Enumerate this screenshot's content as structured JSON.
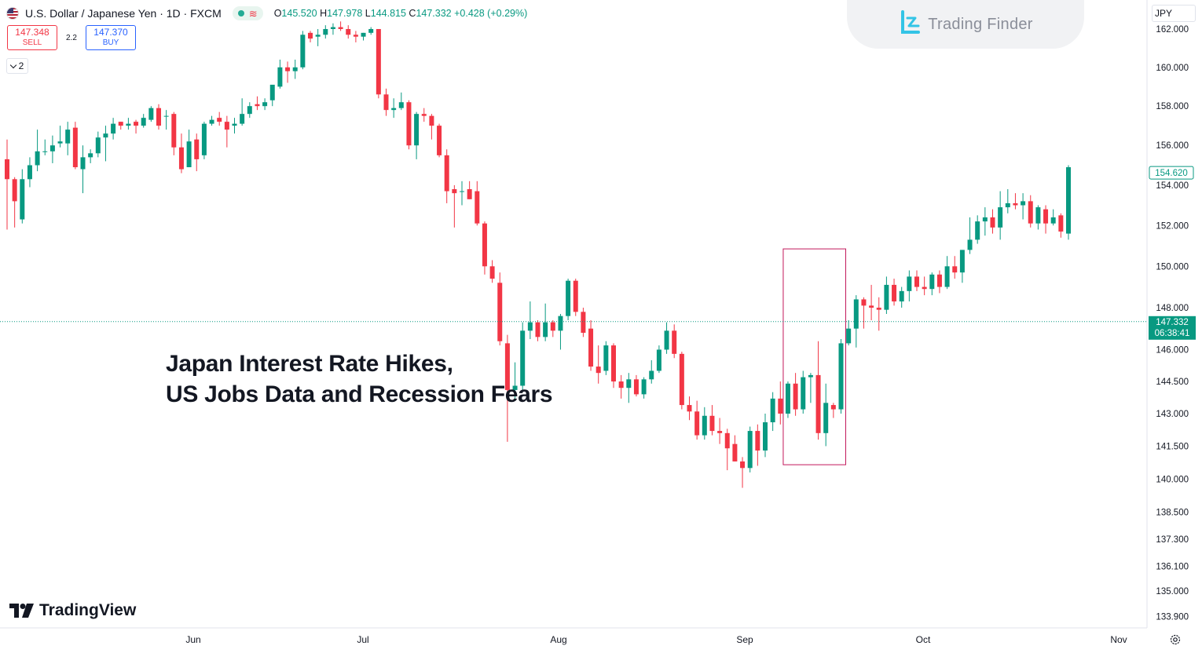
{
  "header": {
    "title": "U.S. Dollar / Japanese Yen · 1D · FXCM",
    "ohlc": {
      "o_label": "O",
      "o": "145.520",
      "h_label": "H",
      "h": "147.978",
      "l_label": "L",
      "l": "144.815",
      "c_label": "C",
      "c": "147.332",
      "change": "+0.428 (+0.29%)"
    }
  },
  "trade": {
    "sell_price": "147.348",
    "sell_label": "SELL",
    "spread": "2.2",
    "buy_price": "147.370",
    "buy_label": "BUY"
  },
  "indicator_count": "2",
  "currency": "JPY",
  "watermark": "Trading Finder",
  "brand": "TradingView",
  "annotation": {
    "line1": "Japan Interest Rate Hikes,",
    "line2": "US Jobs Data and Recession Fears"
  },
  "colors": {
    "up": "#089981",
    "down": "#f23645",
    "box": "#c2185b",
    "last_price": "#089981"
  },
  "chart_data": {
    "type": "candlestick",
    "symbol": "USDJPY",
    "y_ticks": [
      "162.000",
      "160.000",
      "158.000",
      "156.000",
      "154.000",
      "152.000",
      "150.000",
      "148.000",
      "146.000",
      "144.500",
      "143.000",
      "141.500",
      "140.000",
      "138.500",
      "137.300",
      "136.100",
      "135.000",
      "133.900"
    ],
    "x_ticks": [
      "Jun",
      "Jul",
      "Aug",
      "Sep",
      "Oct",
      "Nov"
    ],
    "y_scale": "log",
    "y_range": [
      133.4,
      163.2
    ],
    "last_price": {
      "value": "147.332",
      "countdown": "06:38:41"
    },
    "hline_label": {
      "value": "154.620"
    },
    "highlight_box": {
      "from_index": 103,
      "to_index": 110,
      "high": 150.85,
      "low": 140.65
    },
    "candles": [
      {
        "o": 155.3,
        "h": 156.3,
        "l": 151.8,
        "c": 154.3
      },
      {
        "o": 154.3,
        "h": 154.4,
        "l": 151.9,
        "c": 153.2
      },
      {
        "o": 152.3,
        "h": 154.8,
        "l": 152.1,
        "c": 154.3
      },
      {
        "o": 154.3,
        "h": 155.4,
        "l": 153.9,
        "c": 155.0
      },
      {
        "o": 155.0,
        "h": 156.8,
        "l": 154.7,
        "c": 155.7
      },
      {
        "o": 155.7,
        "h": 156.3,
        "l": 155.5,
        "c": 155.7
      },
      {
        "o": 155.7,
        "h": 156.5,
        "l": 155.1,
        "c": 156.0
      },
      {
        "o": 156.1,
        "h": 157.0,
        "l": 155.9,
        "c": 156.2
      },
      {
        "o": 156.1,
        "h": 157.2,
        "l": 155.5,
        "c": 156.8
      },
      {
        "o": 156.9,
        "h": 157.2,
        "l": 154.8,
        "c": 154.9
      },
      {
        "o": 154.8,
        "h": 156.0,
        "l": 153.6,
        "c": 155.4
      },
      {
        "o": 155.4,
        "h": 155.8,
        "l": 155.1,
        "c": 155.6
      },
      {
        "o": 155.6,
        "h": 156.7,
        "l": 155.4,
        "c": 156.4
      },
      {
        "o": 156.4,
        "h": 157.0,
        "l": 155.2,
        "c": 156.6
      },
      {
        "o": 156.6,
        "h": 157.4,
        "l": 156.3,
        "c": 157.1
      },
      {
        "o": 157.2,
        "h": 157.2,
        "l": 156.8,
        "c": 157.0
      },
      {
        "o": 157.0,
        "h": 157.4,
        "l": 156.8,
        "c": 157.1
      },
      {
        "o": 157.2,
        "h": 157.3,
        "l": 156.6,
        "c": 157.0
      },
      {
        "o": 157.0,
        "h": 157.6,
        "l": 156.9,
        "c": 157.4
      },
      {
        "o": 157.3,
        "h": 158.0,
        "l": 157.2,
        "c": 157.9
      },
      {
        "o": 157.9,
        "h": 158.1,
        "l": 156.8,
        "c": 157.0
      },
      {
        "o": 157.5,
        "h": 157.8,
        "l": 156.8,
        "c": 157.5
      },
      {
        "o": 157.6,
        "h": 157.7,
        "l": 155.5,
        "c": 155.9
      },
      {
        "o": 155.9,
        "h": 156.6,
        "l": 154.6,
        "c": 154.8
      },
      {
        "o": 154.9,
        "h": 156.8,
        "l": 154.9,
        "c": 156.2
      },
      {
        "o": 156.3,
        "h": 156.6,
        "l": 154.7,
        "c": 155.3
      },
      {
        "o": 155.5,
        "h": 157.2,
        "l": 155.3,
        "c": 157.1
      },
      {
        "o": 157.1,
        "h": 157.5,
        "l": 157.0,
        "c": 157.3
      },
      {
        "o": 157.4,
        "h": 157.7,
        "l": 157.0,
        "c": 157.2
      },
      {
        "o": 157.2,
        "h": 157.5,
        "l": 155.9,
        "c": 156.8
      },
      {
        "o": 157.0,
        "h": 157.4,
        "l": 156.6,
        "c": 157.1
      },
      {
        "o": 157.1,
        "h": 158.4,
        "l": 157.0,
        "c": 157.6
      },
      {
        "o": 157.6,
        "h": 158.2,
        "l": 157.4,
        "c": 158.0
      },
      {
        "o": 158.1,
        "h": 158.5,
        "l": 157.8,
        "c": 158.0
      },
      {
        "o": 158.0,
        "h": 158.4,
        "l": 157.8,
        "c": 158.2
      },
      {
        "o": 158.3,
        "h": 159.0,
        "l": 158.0,
        "c": 159.1
      },
      {
        "o": 159.0,
        "h": 160.4,
        "l": 158.9,
        "c": 160.0
      },
      {
        "o": 160.0,
        "h": 160.3,
        "l": 159.2,
        "c": 159.8
      },
      {
        "o": 159.8,
        "h": 160.4,
        "l": 159.4,
        "c": 160.0
      },
      {
        "o": 160.0,
        "h": 161.9,
        "l": 159.9,
        "c": 161.7
      },
      {
        "o": 161.8,
        "h": 161.9,
        "l": 161.3,
        "c": 161.5
      },
      {
        "o": 161.6,
        "h": 162.0,
        "l": 161.1,
        "c": 161.7
      },
      {
        "o": 161.7,
        "h": 162.2,
        "l": 161.5,
        "c": 162.0
      },
      {
        "o": 162.0,
        "h": 162.3,
        "l": 161.7,
        "c": 162.1
      },
      {
        "o": 162.1,
        "h": 162.4,
        "l": 161.9,
        "c": 162.0
      },
      {
        "o": 162.0,
        "h": 162.2,
        "l": 161.5,
        "c": 161.7
      },
      {
        "o": 161.7,
        "h": 161.9,
        "l": 161.3,
        "c": 161.6
      },
      {
        "o": 161.6,
        "h": 161.8,
        "l": 161.4,
        "c": 161.8
      },
      {
        "o": 161.8,
        "h": 162.1,
        "l": 161.7,
        "c": 162.0
      },
      {
        "o": 162.0,
        "h": 162.0,
        "l": 158.4,
        "c": 158.6
      },
      {
        "o": 158.6,
        "h": 158.9,
        "l": 157.5,
        "c": 157.8
      },
      {
        "o": 157.8,
        "h": 158.4,
        "l": 157.4,
        "c": 157.9
      },
      {
        "o": 157.9,
        "h": 158.7,
        "l": 157.8,
        "c": 158.2
      },
      {
        "o": 158.2,
        "h": 158.3,
        "l": 155.8,
        "c": 156.0
      },
      {
        "o": 156.0,
        "h": 157.7,
        "l": 155.3,
        "c": 157.6
      },
      {
        "o": 157.6,
        "h": 157.9,
        "l": 157.2,
        "c": 157.5
      },
      {
        "o": 157.5,
        "h": 157.6,
        "l": 156.3,
        "c": 157.0
      },
      {
        "o": 157.0,
        "h": 157.1,
        "l": 155.4,
        "c": 155.5
      },
      {
        "o": 155.5,
        "h": 155.8,
        "l": 153.1,
        "c": 153.7
      },
      {
        "o": 153.8,
        "h": 154.0,
        "l": 151.9,
        "c": 153.6
      },
      {
        "o": 153.7,
        "h": 154.2,
        "l": 153.0,
        "c": 153.7
      },
      {
        "o": 153.8,
        "h": 154.2,
        "l": 153.3,
        "c": 153.3
      },
      {
        "o": 153.7,
        "h": 154.2,
        "l": 152.0,
        "c": 152.1
      },
      {
        "o": 152.1,
        "h": 152.2,
        "l": 149.6,
        "c": 150.0
      },
      {
        "o": 150.0,
        "h": 150.3,
        "l": 149.2,
        "c": 149.4
      },
      {
        "o": 149.2,
        "h": 149.7,
        "l": 146.2,
        "c": 146.4
      },
      {
        "o": 146.3,
        "h": 146.7,
        "l": 141.7,
        "c": 144.1
      },
      {
        "o": 144.1,
        "h": 145.4,
        "l": 143.7,
        "c": 144.3
      },
      {
        "o": 144.3,
        "h": 147.3,
        "l": 144.0,
        "c": 146.9
      },
      {
        "o": 146.9,
        "h": 148.3,
        "l": 146.5,
        "c": 147.3
      },
      {
        "o": 147.3,
        "h": 147.4,
        "l": 146.4,
        "c": 146.6
      },
      {
        "o": 146.6,
        "h": 148.2,
        "l": 146.4,
        "c": 147.3
      },
      {
        "o": 147.3,
        "h": 147.4,
        "l": 146.6,
        "c": 146.9
      },
      {
        "o": 146.9,
        "h": 147.7,
        "l": 146.0,
        "c": 147.6
      },
      {
        "o": 147.6,
        "h": 149.4,
        "l": 147.4,
        "c": 149.3
      },
      {
        "o": 149.3,
        "h": 149.4,
        "l": 147.6,
        "c": 147.8
      },
      {
        "o": 147.8,
        "h": 148.0,
        "l": 146.6,
        "c": 146.8
      },
      {
        "o": 147.0,
        "h": 147.4,
        "l": 145.0,
        "c": 145.2
      },
      {
        "o": 145.2,
        "h": 146.2,
        "l": 144.4,
        "c": 144.9
      },
      {
        "o": 145.0,
        "h": 146.4,
        "l": 144.8,
        "c": 146.2
      },
      {
        "o": 146.2,
        "h": 146.3,
        "l": 144.2,
        "c": 144.5
      },
      {
        "o": 144.5,
        "h": 144.8,
        "l": 143.7,
        "c": 144.2
      },
      {
        "o": 144.2,
        "h": 144.9,
        "l": 143.5,
        "c": 144.6
      },
      {
        "o": 144.6,
        "h": 144.8,
        "l": 143.8,
        "c": 143.9
      },
      {
        "o": 143.9,
        "h": 144.7,
        "l": 143.7,
        "c": 144.6
      },
      {
        "o": 144.6,
        "h": 145.5,
        "l": 144.4,
        "c": 145.0
      },
      {
        "o": 145.0,
        "h": 146.2,
        "l": 144.9,
        "c": 146.0
      },
      {
        "o": 146.0,
        "h": 147.3,
        "l": 145.8,
        "c": 146.9
      },
      {
        "o": 146.9,
        "h": 147.2,
        "l": 145.6,
        "c": 145.8
      },
      {
        "o": 145.8,
        "h": 145.9,
        "l": 143.2,
        "c": 143.4
      },
      {
        "o": 143.4,
        "h": 143.8,
        "l": 142.7,
        "c": 143.1
      },
      {
        "o": 143.1,
        "h": 143.6,
        "l": 141.8,
        "c": 142.0
      },
      {
        "o": 142.0,
        "h": 143.3,
        "l": 141.8,
        "c": 142.9
      },
      {
        "o": 142.9,
        "h": 143.4,
        "l": 142.0,
        "c": 142.2
      },
      {
        "o": 142.2,
        "h": 142.8,
        "l": 141.6,
        "c": 142.1
      },
      {
        "o": 142.1,
        "h": 142.3,
        "l": 140.4,
        "c": 141.4
      },
      {
        "o": 141.6,
        "h": 142.0,
        "l": 140.8,
        "c": 140.8
      },
      {
        "o": 140.8,
        "h": 141.0,
        "l": 139.6,
        "c": 140.5
      },
      {
        "o": 140.5,
        "h": 142.4,
        "l": 140.3,
        "c": 142.2
      },
      {
        "o": 142.2,
        "h": 142.5,
        "l": 140.6,
        "c": 141.3
      },
      {
        "o": 141.3,
        "h": 143.0,
        "l": 141.0,
        "c": 142.6
      },
      {
        "o": 142.6,
        "h": 144.0,
        "l": 142.2,
        "c": 143.7
      },
      {
        "o": 143.7,
        "h": 144.5,
        "l": 142.5,
        "c": 143.0
      },
      {
        "o": 143.0,
        "h": 144.5,
        "l": 142.8,
        "c": 144.4
      },
      {
        "o": 144.4,
        "h": 144.9,
        "l": 142.9,
        "c": 143.2
      },
      {
        "o": 143.2,
        "h": 145.0,
        "l": 143.0,
        "c": 144.7
      },
      {
        "o": 144.7,
        "h": 144.9,
        "l": 143.5,
        "c": 144.8
      },
      {
        "o": 144.8,
        "h": 146.4,
        "l": 141.8,
        "c": 142.1
      },
      {
        "o": 142.1,
        "h": 144.4,
        "l": 141.5,
        "c": 143.5
      },
      {
        "o": 143.4,
        "h": 143.5,
        "l": 142.8,
        "c": 143.2
      },
      {
        "o": 143.2,
        "h": 146.5,
        "l": 143.0,
        "c": 146.3
      },
      {
        "o": 146.3,
        "h": 147.4,
        "l": 146.2,
        "c": 147.0
      },
      {
        "o": 147.0,
        "h": 148.6,
        "l": 146.1,
        "c": 148.4
      },
      {
        "o": 148.4,
        "h": 148.5,
        "l": 147.0,
        "c": 148.1
      },
      {
        "o": 148.1,
        "h": 149.1,
        "l": 147.4,
        "c": 148.0
      },
      {
        "o": 148.0,
        "h": 148.5,
        "l": 146.9,
        "c": 147.9
      },
      {
        "o": 147.9,
        "h": 149.5,
        "l": 147.7,
        "c": 149.1
      },
      {
        "o": 149.1,
        "h": 149.4,
        "l": 148.1,
        "c": 148.3
      },
      {
        "o": 148.3,
        "h": 149.0,
        "l": 148.0,
        "c": 148.8
      },
      {
        "o": 148.8,
        "h": 149.8,
        "l": 148.3,
        "c": 149.5
      },
      {
        "o": 149.5,
        "h": 149.8,
        "l": 148.8,
        "c": 149.0
      },
      {
        "o": 149.0,
        "h": 149.5,
        "l": 148.6,
        "c": 148.9
      },
      {
        "o": 148.9,
        "h": 149.7,
        "l": 148.6,
        "c": 149.6
      },
      {
        "o": 149.6,
        "h": 149.8,
        "l": 148.7,
        "c": 149.0
      },
      {
        "o": 149.0,
        "h": 150.5,
        "l": 148.9,
        "c": 150.0
      },
      {
        "o": 150.0,
        "h": 150.5,
        "l": 149.4,
        "c": 149.7
      },
      {
        "o": 149.7,
        "h": 150.8,
        "l": 149.2,
        "c": 150.8
      },
      {
        "o": 150.8,
        "h": 152.4,
        "l": 150.6,
        "c": 151.3
      },
      {
        "o": 151.3,
        "h": 152.5,
        "l": 151.1,
        "c": 152.2
      },
      {
        "o": 152.2,
        "h": 152.9,
        "l": 151.5,
        "c": 152.4
      },
      {
        "o": 152.4,
        "h": 152.8,
        "l": 151.6,
        "c": 151.9
      },
      {
        "o": 151.9,
        "h": 153.7,
        "l": 151.3,
        "c": 152.9
      },
      {
        "o": 152.9,
        "h": 153.8,
        "l": 152.6,
        "c": 153.1
      },
      {
        "o": 153.1,
        "h": 153.6,
        "l": 152.8,
        "c": 153.0
      },
      {
        "o": 153.0,
        "h": 153.6,
        "l": 152.3,
        "c": 153.2
      },
      {
        "o": 153.2,
        "h": 153.5,
        "l": 151.9,
        "c": 152.1
      },
      {
        "o": 152.1,
        "h": 153.0,
        "l": 151.8,
        "c": 152.9
      },
      {
        "o": 152.8,
        "h": 153.0,
        "l": 151.6,
        "c": 152.1
      },
      {
        "o": 152.1,
        "h": 152.8,
        "l": 152.0,
        "c": 152.4
      },
      {
        "o": 152.5,
        "h": 152.6,
        "l": 151.4,
        "c": 151.7
      },
      {
        "o": 151.6,
        "h": 155.0,
        "l": 151.3,
        "c": 154.9
      }
    ]
  }
}
